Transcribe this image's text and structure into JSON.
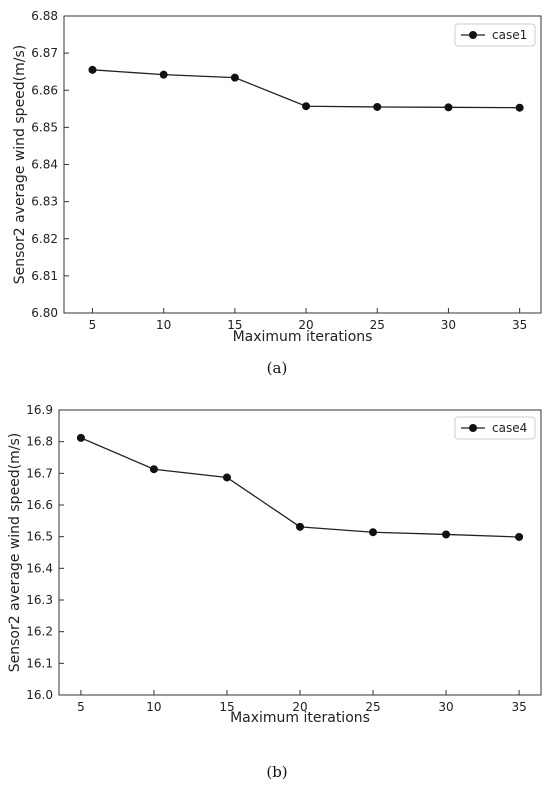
{
  "chart_data": [
    {
      "type": "line",
      "x": [
        5,
        10,
        15,
        20,
        25,
        30,
        35
      ],
      "series": [
        {
          "name": "case1",
          "values": [
            6.8655,
            6.8642,
            6.8634,
            6.8557,
            6.8555,
            6.8554,
            6.8553
          ]
        }
      ],
      "xlabel": "Maximum iterations",
      "ylabel": "Sensor2 average wind speed(m/s)",
      "xticks": [
        "5",
        "10",
        "15",
        "20",
        "25",
        "30",
        "35"
      ],
      "yticks": [
        "6.80",
        "6.81",
        "6.82",
        "6.83",
        "6.84",
        "6.85",
        "6.86",
        "6.87",
        "6.88"
      ],
      "xlim": [
        3,
        36.5
      ],
      "ylim": [
        6.8,
        6.88
      ],
      "grid": false,
      "legend": "top-right",
      "line_color": "#222222",
      "caption": "(a)"
    },
    {
      "type": "line",
      "x": [
        5,
        10,
        15,
        20,
        25,
        30,
        35
      ],
      "series": [
        {
          "name": "case4",
          "values": [
            16.812,
            16.713,
            16.687,
            16.531,
            16.514,
            16.507,
            16.499
          ]
        }
      ],
      "xlabel": "Maximum iterations",
      "ylabel": "Sensor2 average wind speed(m/s)",
      "xticks": [
        "5",
        "10",
        "15",
        "20",
        "25",
        "30",
        "35"
      ],
      "yticks": [
        "16.0",
        "16.1",
        "16.2",
        "16.3",
        "16.4",
        "16.5",
        "16.6",
        "16.7",
        "16.8",
        "16.9"
      ],
      "xlim": [
        3.5,
        36.5
      ],
      "ylim": [
        16.0,
        16.9
      ],
      "grid": false,
      "legend": "top-right",
      "line_color": "#222222",
      "caption": "(b)"
    }
  ]
}
